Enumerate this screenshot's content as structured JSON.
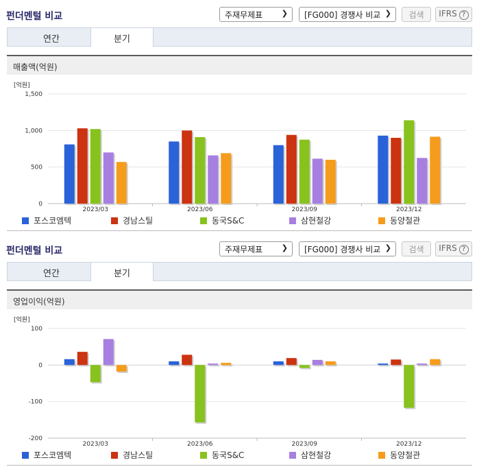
{
  "panels": [
    {
      "title": "펀더멘털 비교",
      "select1": "주재무제표",
      "select2": "[FG000] 경쟁사 비교",
      "search_label": "검색",
      "ifrs_label": "IFRS",
      "help_glyph": "?",
      "tabs": [
        "연간",
        "분기"
      ],
      "active_tab": "분기",
      "metric_label": "매출액(억원)",
      "unit_label": "[억원]"
    },
    {
      "title": "펀더멘털 비교",
      "select1": "주재무제표",
      "select2": "[FG000] 경쟁사 비교",
      "search_label": "검색",
      "ifrs_label": "IFRS",
      "help_glyph": "?",
      "tabs": [
        "연간",
        "분기"
      ],
      "active_tab": "분기",
      "metric_label": "영업이익(억원)",
      "unit_label": "[억원]"
    }
  ],
  "colors": {
    "포스코엠텍": "#2a62d8",
    "경남스틸": "#cc3311",
    "동국S&C": "#88c21e",
    "삼현철강": "#a77fe0",
    "동양철관": "#f59c1c"
  },
  "chart_data": [
    {
      "type": "bar",
      "categories": [
        "2023/03",
        "2023/06",
        "2023/09",
        "2023/12"
      ],
      "ylim": [
        0,
        1500
      ],
      "yticks": [
        "0",
        "500",
        "1,000",
        "1,500"
      ],
      "ytick_values": [
        0,
        500,
        1000,
        1500
      ],
      "series": [
        {
          "name": "포스코엠텍",
          "values": [
            810,
            850,
            800,
            930
          ]
        },
        {
          "name": "경남스틸",
          "values": [
            1030,
            1000,
            940,
            900
          ]
        },
        {
          "name": "동국S&C",
          "values": [
            1020,
            910,
            875,
            1140
          ]
        },
        {
          "name": "삼현철강",
          "values": [
            700,
            660,
            615,
            625
          ]
        },
        {
          "name": "동양철관",
          "values": [
            570,
            690,
            600,
            915
          ]
        }
      ]
    },
    {
      "type": "bar",
      "categories": [
        "2023/03",
        "2023/06",
        "2023/09",
        "2023/12"
      ],
      "ylim": [
        -200,
        100
      ],
      "yticks": [
        "-200",
        "-100",
        "0",
        "100"
      ],
      "ytick_values": [
        -200,
        -100,
        0,
        100
      ],
      "series": [
        {
          "name": "포스코엠텍",
          "values": [
            16,
            10,
            10,
            4
          ]
        },
        {
          "name": "경남스틸",
          "values": [
            36,
            28,
            19,
            15
          ]
        },
        {
          "name": "동국S&C",
          "values": [
            -47,
            -157,
            -8,
            -117
          ]
        },
        {
          "name": "삼현철강",
          "values": [
            71,
            4,
            14,
            4
          ]
        },
        {
          "name": "동양철관",
          "values": [
            -18,
            6,
            10,
            16
          ]
        }
      ]
    }
  ]
}
